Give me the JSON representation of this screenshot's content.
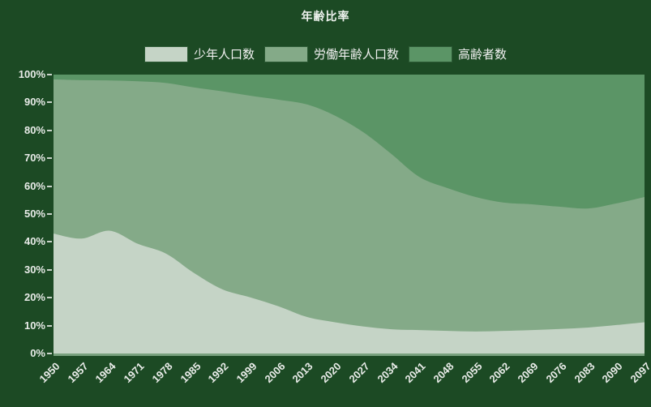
{
  "title": "年齢比率",
  "colors": {
    "background": "#1c4a24",
    "title_text": "#eef2ee",
    "axis_text": "#e9ece9",
    "axis_line": "#79a17e",
    "tick": "#c9d4ca"
  },
  "legend": {
    "items": [
      {
        "label": "少年人口数",
        "color": "#c5d4c6"
      },
      {
        "label": "労働年齢人口数",
        "color": "#84aa88"
      },
      {
        "label": "高齢者数",
        "color": "#5b9566"
      }
    ]
  },
  "chart_data": {
    "type": "area",
    "stacked": "percent",
    "title": "年齢比率",
    "legend_position": "top",
    "grid": false,
    "xlabel": "",
    "ylabel": "",
    "ylim": [
      0,
      100
    ],
    "y_tick_labels": [
      "0%",
      "10%",
      "20%",
      "30%",
      "40%",
      "50%",
      "60%",
      "70%",
      "80%",
      "90%",
      "100%"
    ],
    "x": [
      1950,
      1957,
      1964,
      1971,
      1978,
      1985,
      1992,
      1999,
      2006,
      2013,
      2020,
      2027,
      2034,
      2041,
      2048,
      2055,
      2062,
      2069,
      2076,
      2083,
      2090,
      2097
    ],
    "series": [
      {
        "name": "少年人口数",
        "color": "#c5d4c6",
        "values": [
          43.0,
          41.2,
          44.0,
          39.3,
          35.8,
          28.8,
          23.0,
          20.1,
          16.9,
          13.1,
          11.2,
          9.7,
          8.7,
          8.4,
          8.1,
          7.9,
          8.1,
          8.4,
          8.8,
          9.3,
          10.2,
          11.2
        ]
      },
      {
        "name": "労働年齢人口数",
        "color": "#84aa88",
        "values": [
          55.3,
          56.8,
          53.9,
          58.3,
          61.2,
          66.6,
          71.0,
          72.3,
          74.1,
          76.2,
          74.1,
          69.7,
          62.9,
          54.9,
          51.2,
          48.2,
          46.0,
          45.1,
          43.8,
          42.7,
          43.6,
          44.9
        ]
      },
      {
        "name": "高齢者数",
        "color": "#5b9566",
        "values": [
          1.7,
          2.0,
          2.1,
          2.4,
          3.0,
          4.6,
          6.0,
          7.6,
          9.0,
          10.7,
          14.7,
          20.6,
          28.4,
          36.7,
          40.7,
          43.9,
          45.9,
          46.5,
          47.4,
          48.0,
          46.2,
          43.9
        ]
      }
    ]
  }
}
